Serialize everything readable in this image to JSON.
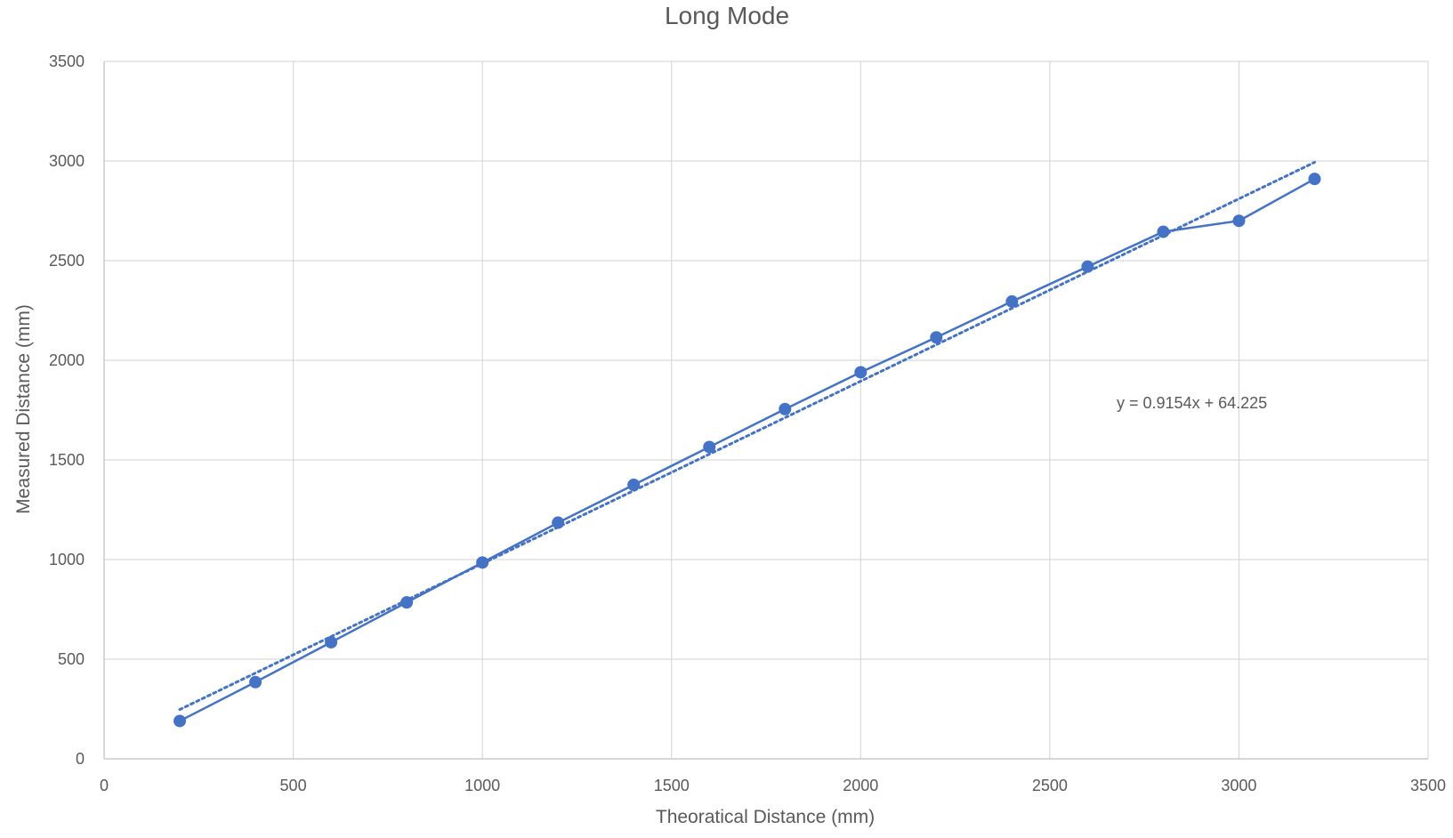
{
  "chart_data": {
    "type": "scatter",
    "title": "Long Mode",
    "xlabel": "Theoratical Distance (mm)",
    "ylabel": "Measured Distance (mm)",
    "xlim": [
      0,
      3500
    ],
    "ylim": [
      0,
      3500
    ],
    "x_ticks": [
      0,
      500,
      1000,
      1500,
      2000,
      2500,
      3000,
      3500
    ],
    "y_ticks": [
      0,
      500,
      1000,
      1500,
      2000,
      2500,
      3000,
      3500
    ],
    "grid": true,
    "legend": "none",
    "series": [
      {
        "marker": "circle",
        "line": "solid",
        "color": "#4472C4",
        "x": [
          200,
          400,
          600,
          800,
          1000,
          1200,
          1400,
          1600,
          1800,
          2000,
          2200,
          2400,
          2600,
          2800,
          3000,
          3200
        ],
        "y": [
          190,
          385,
          585,
          785,
          985,
          1185,
          1375,
          1565,
          1755,
          1940,
          2115,
          2295,
          2470,
          2645,
          2700,
          2910
        ]
      }
    ],
    "trendline": {
      "type": "linear",
      "style": "dotted",
      "color": "#4472C4",
      "slope": 0.9154,
      "intercept": 64.225,
      "x_range": [
        200,
        3200
      ],
      "equation_label": "y = 0.9154x + 64.225"
    }
  }
}
